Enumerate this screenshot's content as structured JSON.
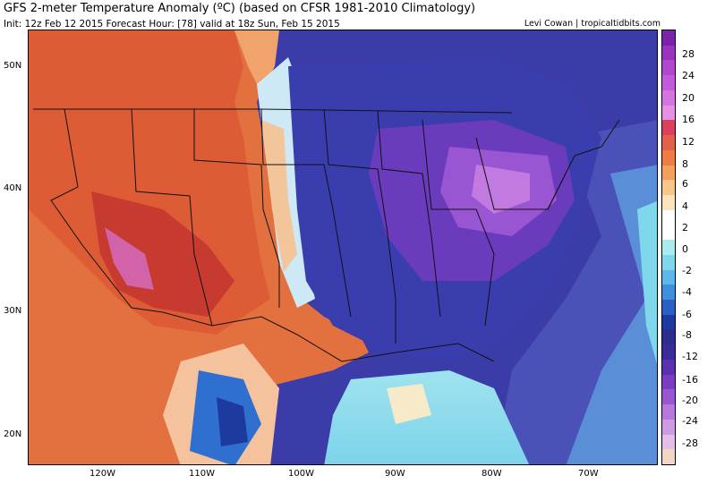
{
  "header": {
    "title": "GFS 2-meter Temperature Anomaly (ºC) (based on CFSR 1981-2010 Climatology)",
    "subtitle": "Init: 12z Feb 12 2015   Forecast Hour: [78]   valid at 18z Sun, Feb 15 2015",
    "credit": "Levi Cowan | tropicaltidbits.com"
  },
  "axes": {
    "lat_labels": [
      "50N",
      "40N",
      "30N",
      "20N"
    ],
    "lon_labels": [
      "120W",
      "110W",
      "100W",
      "90W",
      "80W",
      "70W"
    ]
  },
  "colorbar": {
    "labels": [
      "28",
      "24",
      "20",
      "16",
      "12",
      "8",
      "6",
      "4",
      "2",
      "0",
      "-2",
      "-4",
      "-6",
      "-8",
      "-12",
      "-16",
      "-20",
      "-24",
      "-28"
    ],
    "colors": [
      "#7a22a8",
      "#9a33c0",
      "#b346d1",
      "#c35ad9",
      "#d374df",
      "#e590e5",
      "#d9415d",
      "#e3604a",
      "#ef7d42",
      "#f3a05d",
      "#f8c58a",
      "#fbe3bb",
      "#ffffff",
      "#ffffff",
      "#a8ecf0",
      "#7fd7ec",
      "#5bb8e8",
      "#3f8fde",
      "#2a5fc6",
      "#1d3a9f",
      "#2a2f8f",
      "#3a2c98",
      "#5a2fb0",
      "#7b3cc4",
      "#9a55d2",
      "#b877dc",
      "#cf9be3",
      "#e2bfe9",
      "#f2d6c4"
    ]
  },
  "map": {
    "description_colors": {
      "warm": "#e06a3a",
      "hot": "#c8302e",
      "cold": "#2c3a9a",
      "very_cold": "#6a3bbd",
      "ocean_mild": "#7fd7ec"
    }
  }
}
